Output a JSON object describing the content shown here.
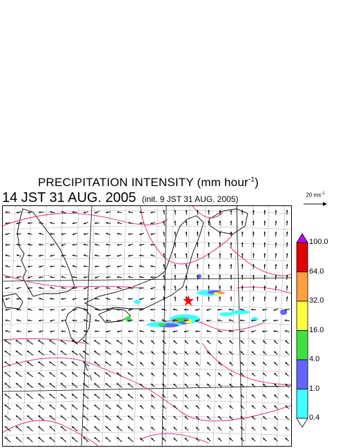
{
  "title": {
    "main": "PRECIPITATION INTENSITY (mm hour",
    "exp": "-1",
    "close": ")"
  },
  "valid_time": "14 JST 31 AUG. 2005",
  "init_time": "(init. 9 JST 31 AUG. 2005)",
  "wind_reference": {
    "text": "20 ms",
    "exp": "-1"
  },
  "color_scale": {
    "levels": [
      "100.0",
      "64.0",
      "32.0",
      "16.0",
      "4.0",
      "1.0",
      "0.4"
    ],
    "colors": [
      "#e00000",
      "#ffa040",
      "#ffff40",
      "#40e040",
      "#6464ff",
      "#40ffff"
    ],
    "over_color": "#c000ff",
    "under_color": "#ffffff"
  },
  "map": {
    "contour_color": "#d81e78",
    "grid_color": "#b4b4b4",
    "marker_color": "#ff0000"
  }
}
